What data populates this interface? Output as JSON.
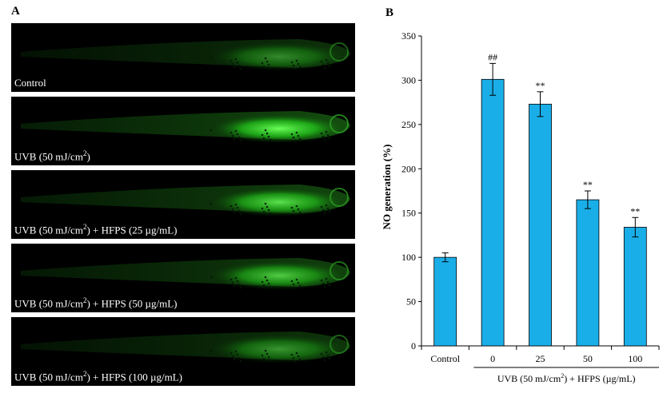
{
  "figure": {
    "panel_a_letter": "A",
    "panel_b_letter": "B"
  },
  "panels": [
    {
      "label_pre": "Control",
      "label_sup": "",
      "label_post": "",
      "intensity": 0.45
    },
    {
      "label_pre": "UVB (50 mJ/cm",
      "label_sup": "2",
      "label_post": ")",
      "intensity": 1.0
    },
    {
      "label_pre": "UVB (50 mJ/cm",
      "label_sup": "2",
      "label_post": ") + HFPS (25 µg/mL)",
      "intensity": 0.85
    },
    {
      "label_pre": "UVB (50 mJ/cm",
      "label_sup": "2",
      "label_post": ") + HFPS (50 µg/mL)",
      "intensity": 0.75
    },
    {
      "label_pre": "UVB (50 mJ/cm",
      "label_sup": "2",
      "label_post": ") + HFPS (100 µg/mL)",
      "intensity": 0.5
    }
  ],
  "chart_data": {
    "type": "bar",
    "categories": [
      "Control",
      "0",
      "25",
      "50",
      "100"
    ],
    "values": [
      100,
      301,
      273,
      165,
      134
    ],
    "errors": [
      5,
      18,
      14,
      10,
      11
    ],
    "annotations": [
      "",
      "##",
      "**",
      "**",
      "**"
    ],
    "ylabel": "NO generation (%)",
    "xlabel_pre": "UVB (50 mJ/cm",
    "xlabel_sup": "2",
    "xlabel_post": ") + HFPS (µg/mL)",
    "ylim": [
      0,
      350
    ],
    "yticks": [
      "0",
      "50",
      "100",
      "150",
      "200",
      "250",
      "300",
      "350"
    ],
    "bar_color": "#1aaee8",
    "grid": false,
    "legend": "none"
  }
}
